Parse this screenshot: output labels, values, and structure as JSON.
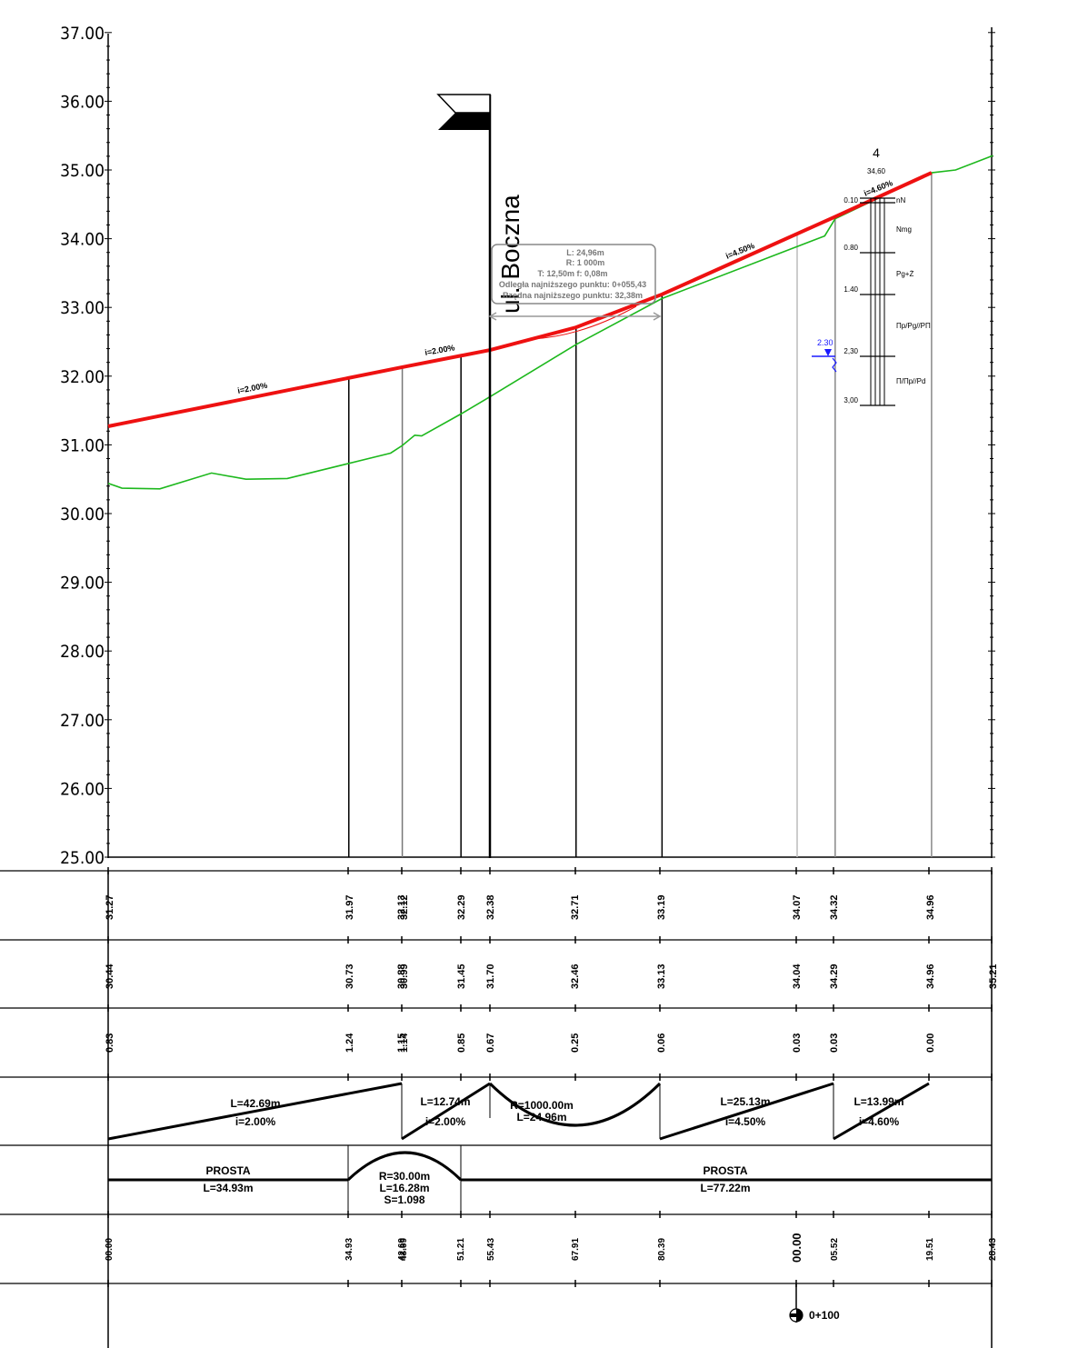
{
  "chart_data": {
    "type": "line",
    "y_axis": {
      "ticks": [
        "37.00",
        "36.00",
        "35.00",
        "34.00",
        "33.00",
        "32.00",
        "31.00",
        "30.00",
        "29.00",
        "28.00",
        "27.00",
        "26.00",
        "25.00"
      ],
      "ylim": [
        25,
        37
      ]
    },
    "series": [
      {
        "key": "design",
        "color": "#ee1111",
        "x": [
          0,
          42.69,
          55.43,
          67.91,
          80.39,
          105.52,
          119.51
        ],
        "y": [
          31.27,
          32.13,
          32.38,
          32.71,
          33.19,
          34.32,
          34.96
        ]
      },
      {
        "key": "terrain",
        "color": "#1db81d",
        "x": [
          0,
          2,
          7.5,
          15,
          20,
          26,
          34.93,
          41,
          42.69,
          44.5,
          45.5,
          51.21,
          55.43,
          67.91,
          80.39,
          104,
          105.52,
          119.51,
          123,
          128.43
        ],
        "y": [
          30.44,
          30.37,
          30.36,
          30.59,
          30.5,
          30.51,
          30.73,
          30.88,
          30.99,
          31.14,
          31.13,
          31.45,
          31.7,
          32.46,
          33.13,
          34.04,
          34.29,
          34.96,
          35.0,
          35.21
        ]
      }
    ],
    "slope_labels": [
      "i=2.00%",
      "i=2.00%",
      "i=4.50%",
      "i=4.60%"
    ],
    "street": {
      "name": "ul. Boczna"
    },
    "curve_box": {
      "lines": [
        "L:  24,96m",
        "R:  1 000m",
        "T:  12,50m    f:  0,08m",
        "Odległa najniższego punktu:  0+055,43",
        "Rzędna najniższego punktu:  32,38m"
      ]
    },
    "borehole": {
      "number": "4",
      "top": "34,60",
      "depths": [
        "0.10",
        "0.80",
        "1.40",
        "2,30",
        "3,00"
      ],
      "soils": [
        "nN",
        "Nmg",
        "Pg+Ż",
        "Пp/Pg//PП",
        "П/Пp//Pd"
      ],
      "water_level": "2.30"
    }
  },
  "table": {
    "row1": [
      "31.27",
      "31.97",
      "32.13",
      "32.12",
      "32.29",
      "32.38",
      "32.71",
      "33.19",
      "34.07",
      "34.32",
      "34.96"
    ],
    "row2": [
      "30.44",
      "30.73",
      "30.88",
      "30.99",
      "31.45",
      "31.70",
      "32.46",
      "33.13",
      "34.04",
      "34.29",
      "34.96",
      "35.21"
    ],
    "row3": [
      "0.83",
      "1.24",
      "1.15",
      "1.14",
      "0.85",
      "0.67",
      "0.25",
      "0.06",
      "0.03",
      "0.03",
      "0.00"
    ],
    "grade": [
      {
        "l": "L=42.69m",
        "i": "i=2.00%"
      },
      {
        "l": "L=12.74m",
        "i": "i=2.00%"
      },
      {
        "l": "R=1000.00m",
        "i": "L=24.96m"
      },
      {
        "l": "L=25.13m",
        "i": "i=4.50%"
      },
      {
        "l": "L=13.99m",
        "i": "i=4.60%"
      }
    ],
    "plan": [
      {
        "a": "PROSTA",
        "b": "L=34.93m"
      },
      {
        "a": "R=30.00m",
        "b": "L=16.28m",
        "c": "S=1.098"
      },
      {
        "a": "PROSTA",
        "b": "L=77.22m"
      }
    ],
    "stations": [
      "00.00",
      "34.93",
      "42.69",
      "43.69",
      "51.21",
      "55.43",
      "67.91",
      "80.39",
      "00.00",
      "05.52",
      "19.51",
      "28.43"
    ],
    "km_mark": "0+100"
  }
}
